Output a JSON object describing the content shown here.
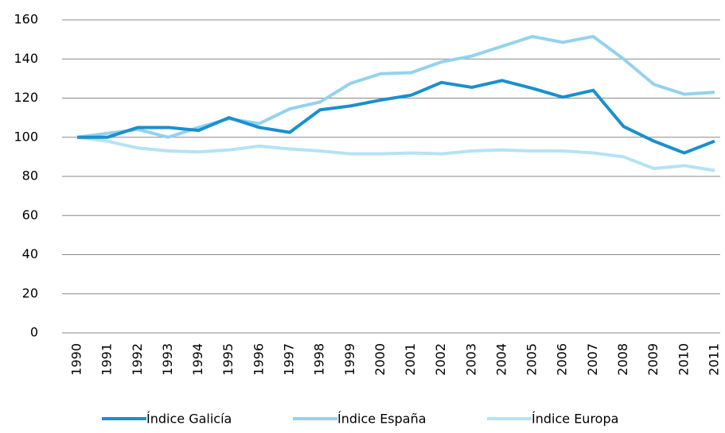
{
  "chart_data": {
    "type": "line",
    "categories": [
      "1990",
      "1991",
      "1992",
      "1993",
      "1994",
      "1995",
      "1996",
      "1997",
      "1998",
      "1999",
      "2000",
      "2001",
      "2002",
      "2003",
      "2004",
      "2005",
      "2006",
      "2007",
      "2008",
      "2009",
      "2010",
      "2011"
    ],
    "series": [
      {
        "name": "Índice Galicía",
        "color": "#1a8fcf",
        "values": [
          100,
          100,
          105,
          105,
          103.5,
          110,
          105,
          102.5,
          114,
          116,
          119,
          121.5,
          128,
          125.5,
          129,
          125,
          120.5,
          124,
          105.5,
          98,
          92,
          98
        ]
      },
      {
        "name": "Índice España",
        "color": "#93d2ee",
        "values": [
          100,
          102,
          104,
          100,
          105,
          109.5,
          107,
          114.5,
          118,
          127.5,
          132.5,
          133,
          138.5,
          141.5,
          146.5,
          151.5,
          148.5,
          151.5,
          140,
          127,
          122,
          123
        ]
      },
      {
        "name": "Índice Europa",
        "color": "#b5e2f5",
        "values": [
          100,
          98,
          94.5,
          93,
          92.5,
          93.5,
          95.5,
          94,
          93,
          91.5,
          91.5,
          92,
          91.5,
          93,
          93.5,
          93,
          93,
          92,
          90,
          84,
          85.5,
          83
        ]
      }
    ],
    "ylim": [
      0,
      160
    ],
    "yticks": [
      0,
      20,
      40,
      60,
      80,
      100,
      120,
      140,
      160
    ],
    "grid": true
  }
}
